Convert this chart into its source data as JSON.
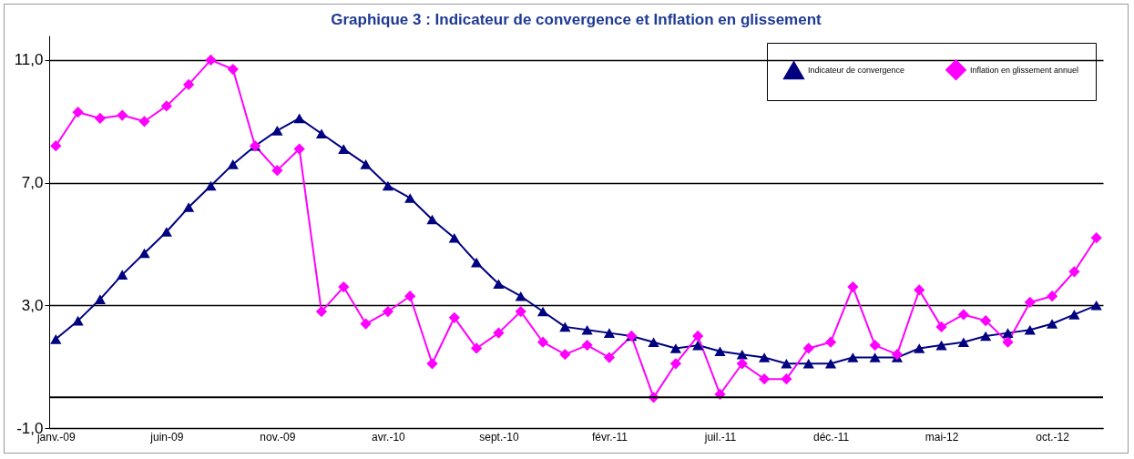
{
  "chart_data": {
    "type": "line",
    "title": "Graphique 3 : Indicateur de convergence et Inflation en glissement",
    "categories": [
      "janv.-09",
      null,
      null,
      null,
      null,
      "juin-09",
      null,
      null,
      null,
      null,
      "nov.-09",
      null,
      null,
      null,
      null,
      "avr.-10",
      null,
      null,
      null,
      null,
      "sept.-10",
      null,
      null,
      null,
      null,
      "févr.-11",
      null,
      null,
      null,
      null,
      "juil.-11",
      null,
      null,
      null,
      null,
      "déc.-11",
      null,
      null,
      null,
      null,
      "mai-12",
      null,
      null,
      null,
      null,
      "oct.-12",
      null,
      null
    ],
    "series": [
      {
        "name": "Indicateur de convergence",
        "color": "#000080",
        "marker": "triangle",
        "values": [
          1.9,
          2.5,
          3.2,
          4.0,
          4.7,
          5.4,
          6.2,
          6.9,
          7.6,
          8.2,
          8.7,
          9.1,
          8.6,
          8.1,
          7.6,
          6.9,
          6.5,
          5.8,
          5.2,
          4.4,
          3.7,
          3.3,
          2.8,
          2.3,
          2.2,
          2.1,
          2.0,
          1.8,
          1.6,
          1.7,
          1.5,
          1.4,
          1.3,
          1.1,
          1.1,
          1.1,
          1.3,
          1.3,
          1.3,
          1.6,
          1.7,
          1.8,
          2.0,
          2.1,
          2.2,
          2.4,
          2.7,
          3.0
        ]
      },
      {
        "name": "Inflation en glissement annuel",
        "color": "#ff00ff",
        "marker": "diamond",
        "values": [
          8.2,
          9.3,
          9.1,
          9.2,
          9.0,
          9.5,
          10.2,
          11.0,
          10.7,
          8.2,
          7.4,
          8.1,
          2.8,
          3.6,
          2.4,
          2.8,
          3.3,
          1.1,
          2.6,
          1.6,
          2.1,
          2.8,
          1.8,
          1.4,
          1.7,
          1.3,
          2.0,
          0.0,
          1.1,
          2.0,
          0.1,
          1.1,
          0.6,
          0.6,
          1.6,
          1.8,
          3.6,
          1.7,
          1.4,
          3.5,
          2.3,
          2.7,
          2.5,
          1.8,
          3.1,
          3.3,
          4.1,
          5.2
        ]
      }
    ],
    "ylim": [
      -1,
      11.8
    ],
    "yticks": [
      {
        "value": -1,
        "label": "-1,0"
      },
      {
        "value": 3,
        "label": "3,0"
      },
      {
        "value": 7,
        "label": "7,0"
      },
      {
        "value": 11,
        "label": "11,0"
      }
    ],
    "ref_lines": [
      {
        "axis": "y",
        "value": 0
      }
    ],
    "grid": "y",
    "legend": "top right",
    "line_style": "solid"
  }
}
